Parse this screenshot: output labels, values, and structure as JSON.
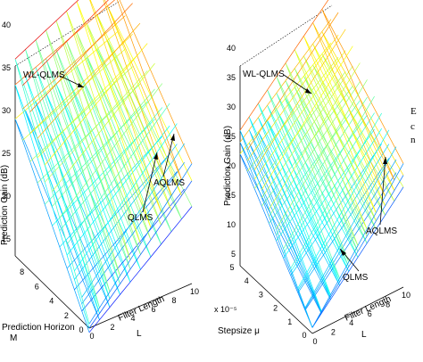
{
  "chart_data": [
    {
      "type": "surface",
      "xlabel": "Filter Length L",
      "ylabel": "Prediction Horizon M",
      "zlabel": "Prediction Gain (dB)",
      "x_ticks": [
        "0",
        "2",
        "4",
        "6",
        "8",
        "10"
      ],
      "y_ticks": [
        "0",
        "2",
        "4",
        "6",
        "8"
      ],
      "z_ticks": [
        "15",
        "20",
        "25",
        "30",
        "35",
        "40"
      ],
      "x_range": [
        0,
        10
      ],
      "y_range": [
        0,
        10
      ],
      "z_range": [
        13,
        42
      ],
      "surfaces": [
        {
          "name": "WL-QLMS",
          "corner_values": {
            "z_at_L0_M0": 13.5,
            "z_at_L10_M0": 27,
            "z_at_L0_M10": 36,
            "z_at_L10_M10": 42
          }
        },
        {
          "name": "AQLMS",
          "corner_values": {
            "z_at_L0_M0": 13,
            "z_at_L10_M0": 25,
            "z_at_L0_M10": 33,
            "z_at_L10_M10": 38
          }
        },
        {
          "name": "QLMS",
          "corner_values": {
            "z_at_L0_M0": 12.5,
            "z_at_L10_M0": 22,
            "z_at_L0_M10": 29,
            "z_at_L10_M10": 34
          }
        }
      ],
      "annotations": [
        "WL-QLMS",
        "AQLMS",
        "QLMS"
      ]
    },
    {
      "type": "surface",
      "xlabel": "Filter Length L",
      "ylabel": "Stepsize μ",
      "y_scale_label": "x 10⁻⁵",
      "zlabel": "Prediction Gain (dB)",
      "x_ticks": [
        "0",
        "2",
        "4",
        "6",
        "8",
        "10"
      ],
      "y_ticks": [
        "0",
        "1",
        "2",
        "3",
        "4",
        "5"
      ],
      "z_ticks": [
        "5",
        "10",
        "15",
        "20",
        "25",
        "30",
        "35",
        "40"
      ],
      "x_range": [
        0,
        10
      ],
      "y_range": [
        0,
        5
      ],
      "z_range": [
        4,
        42
      ],
      "surfaces": [
        {
          "name": "WL-QLMS",
          "corner_values": {
            "z_at_L0_mu0": 4,
            "z_at_L10_mu0": 24,
            "z_at_L0_mu5": 26,
            "z_at_L10_mu5": 41
          }
        },
        {
          "name": "AQLMS",
          "corner_values": {
            "z_at_L0_mu0": 4,
            "z_at_L10_mu0": 22,
            "z_at_L0_mu5": 24,
            "z_at_L10_mu5": 37
          }
        },
        {
          "name": "QLMS",
          "corner_values": {
            "z_at_L0_mu0": 4,
            "z_at_L10_mu0": 20,
            "z_at_L0_mu5": 22,
            "z_at_L10_mu5": 33
          }
        }
      ],
      "annotations": [
        "WL-QLMS",
        "AQLMS",
        "QLMS"
      ]
    }
  ],
  "cropped_text": [
    "E",
    "c",
    "n"
  ]
}
